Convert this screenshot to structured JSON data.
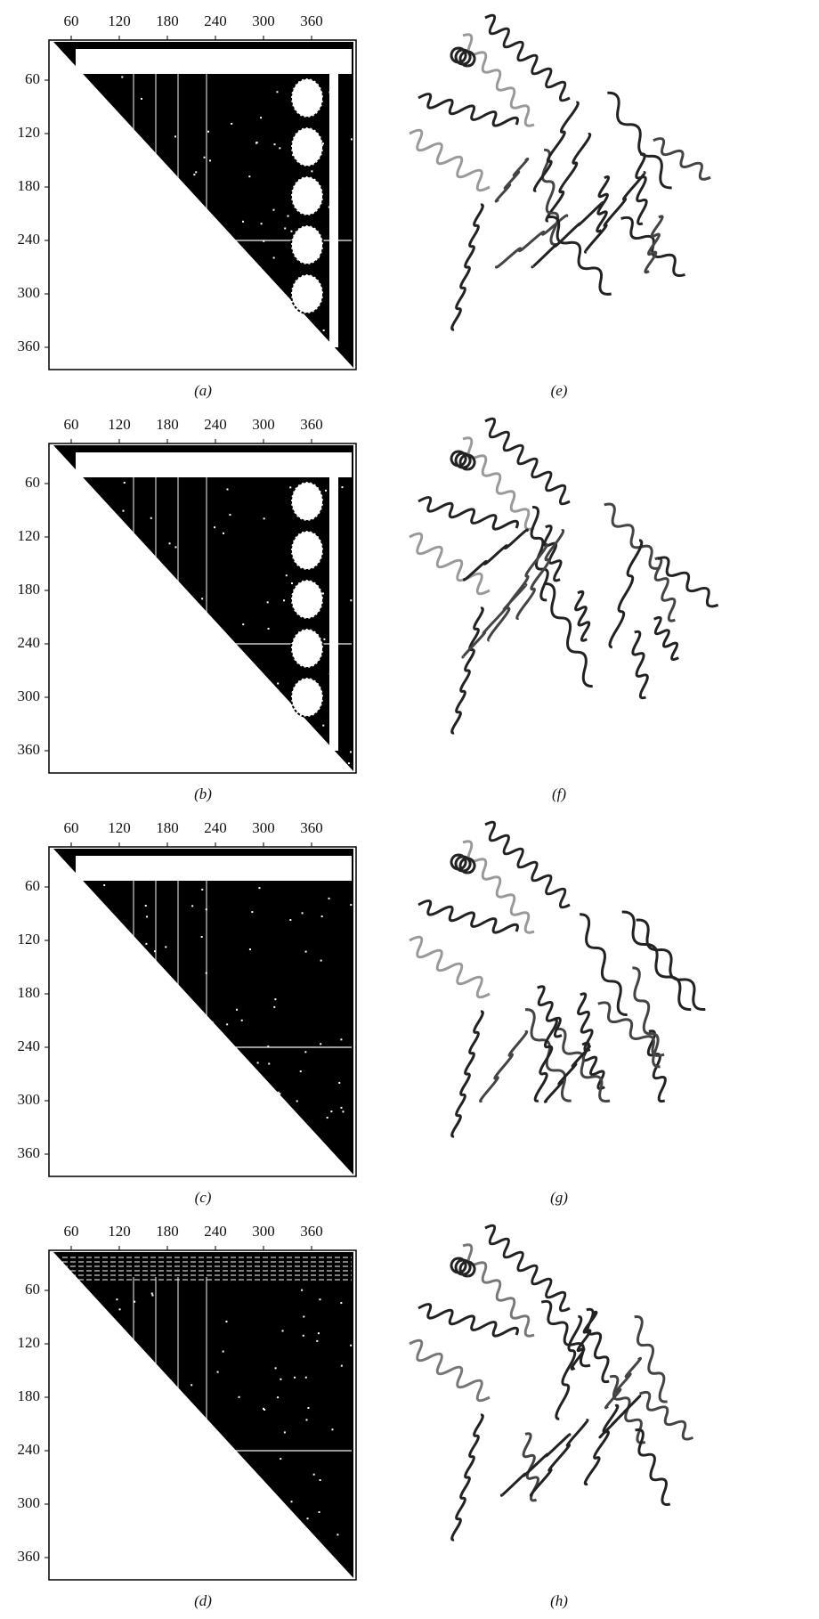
{
  "figure": {
    "maps": [
      {
        "label": "(a)",
        "x_ticks": [
          60,
          120,
          180,
          240,
          300,
          360
        ],
        "y_ticks": [
          60,
          120,
          180,
          240,
          300,
          360
        ]
      },
      {
        "label": "(b)",
        "x_ticks": [
          60,
          120,
          180,
          240,
          300,
          360
        ],
        "y_ticks": [
          60,
          120,
          180,
          240,
          300,
          360
        ]
      },
      {
        "label": "(c)",
        "x_ticks": [
          60,
          120,
          180,
          240,
          300,
          360
        ],
        "y_ticks": [
          60,
          120,
          180,
          240,
          300,
          360
        ]
      },
      {
        "label": "(d)",
        "x_ticks": [
          60,
          120,
          180,
          240,
          300,
          360
        ],
        "y_ticks": [
          60,
          120,
          180,
          240,
          300,
          360
        ]
      }
    ],
    "structures": [
      {
        "label": "(e)"
      },
      {
        "label": "(f)"
      },
      {
        "label": "(g)"
      },
      {
        "label": "(h)"
      }
    ]
  }
}
